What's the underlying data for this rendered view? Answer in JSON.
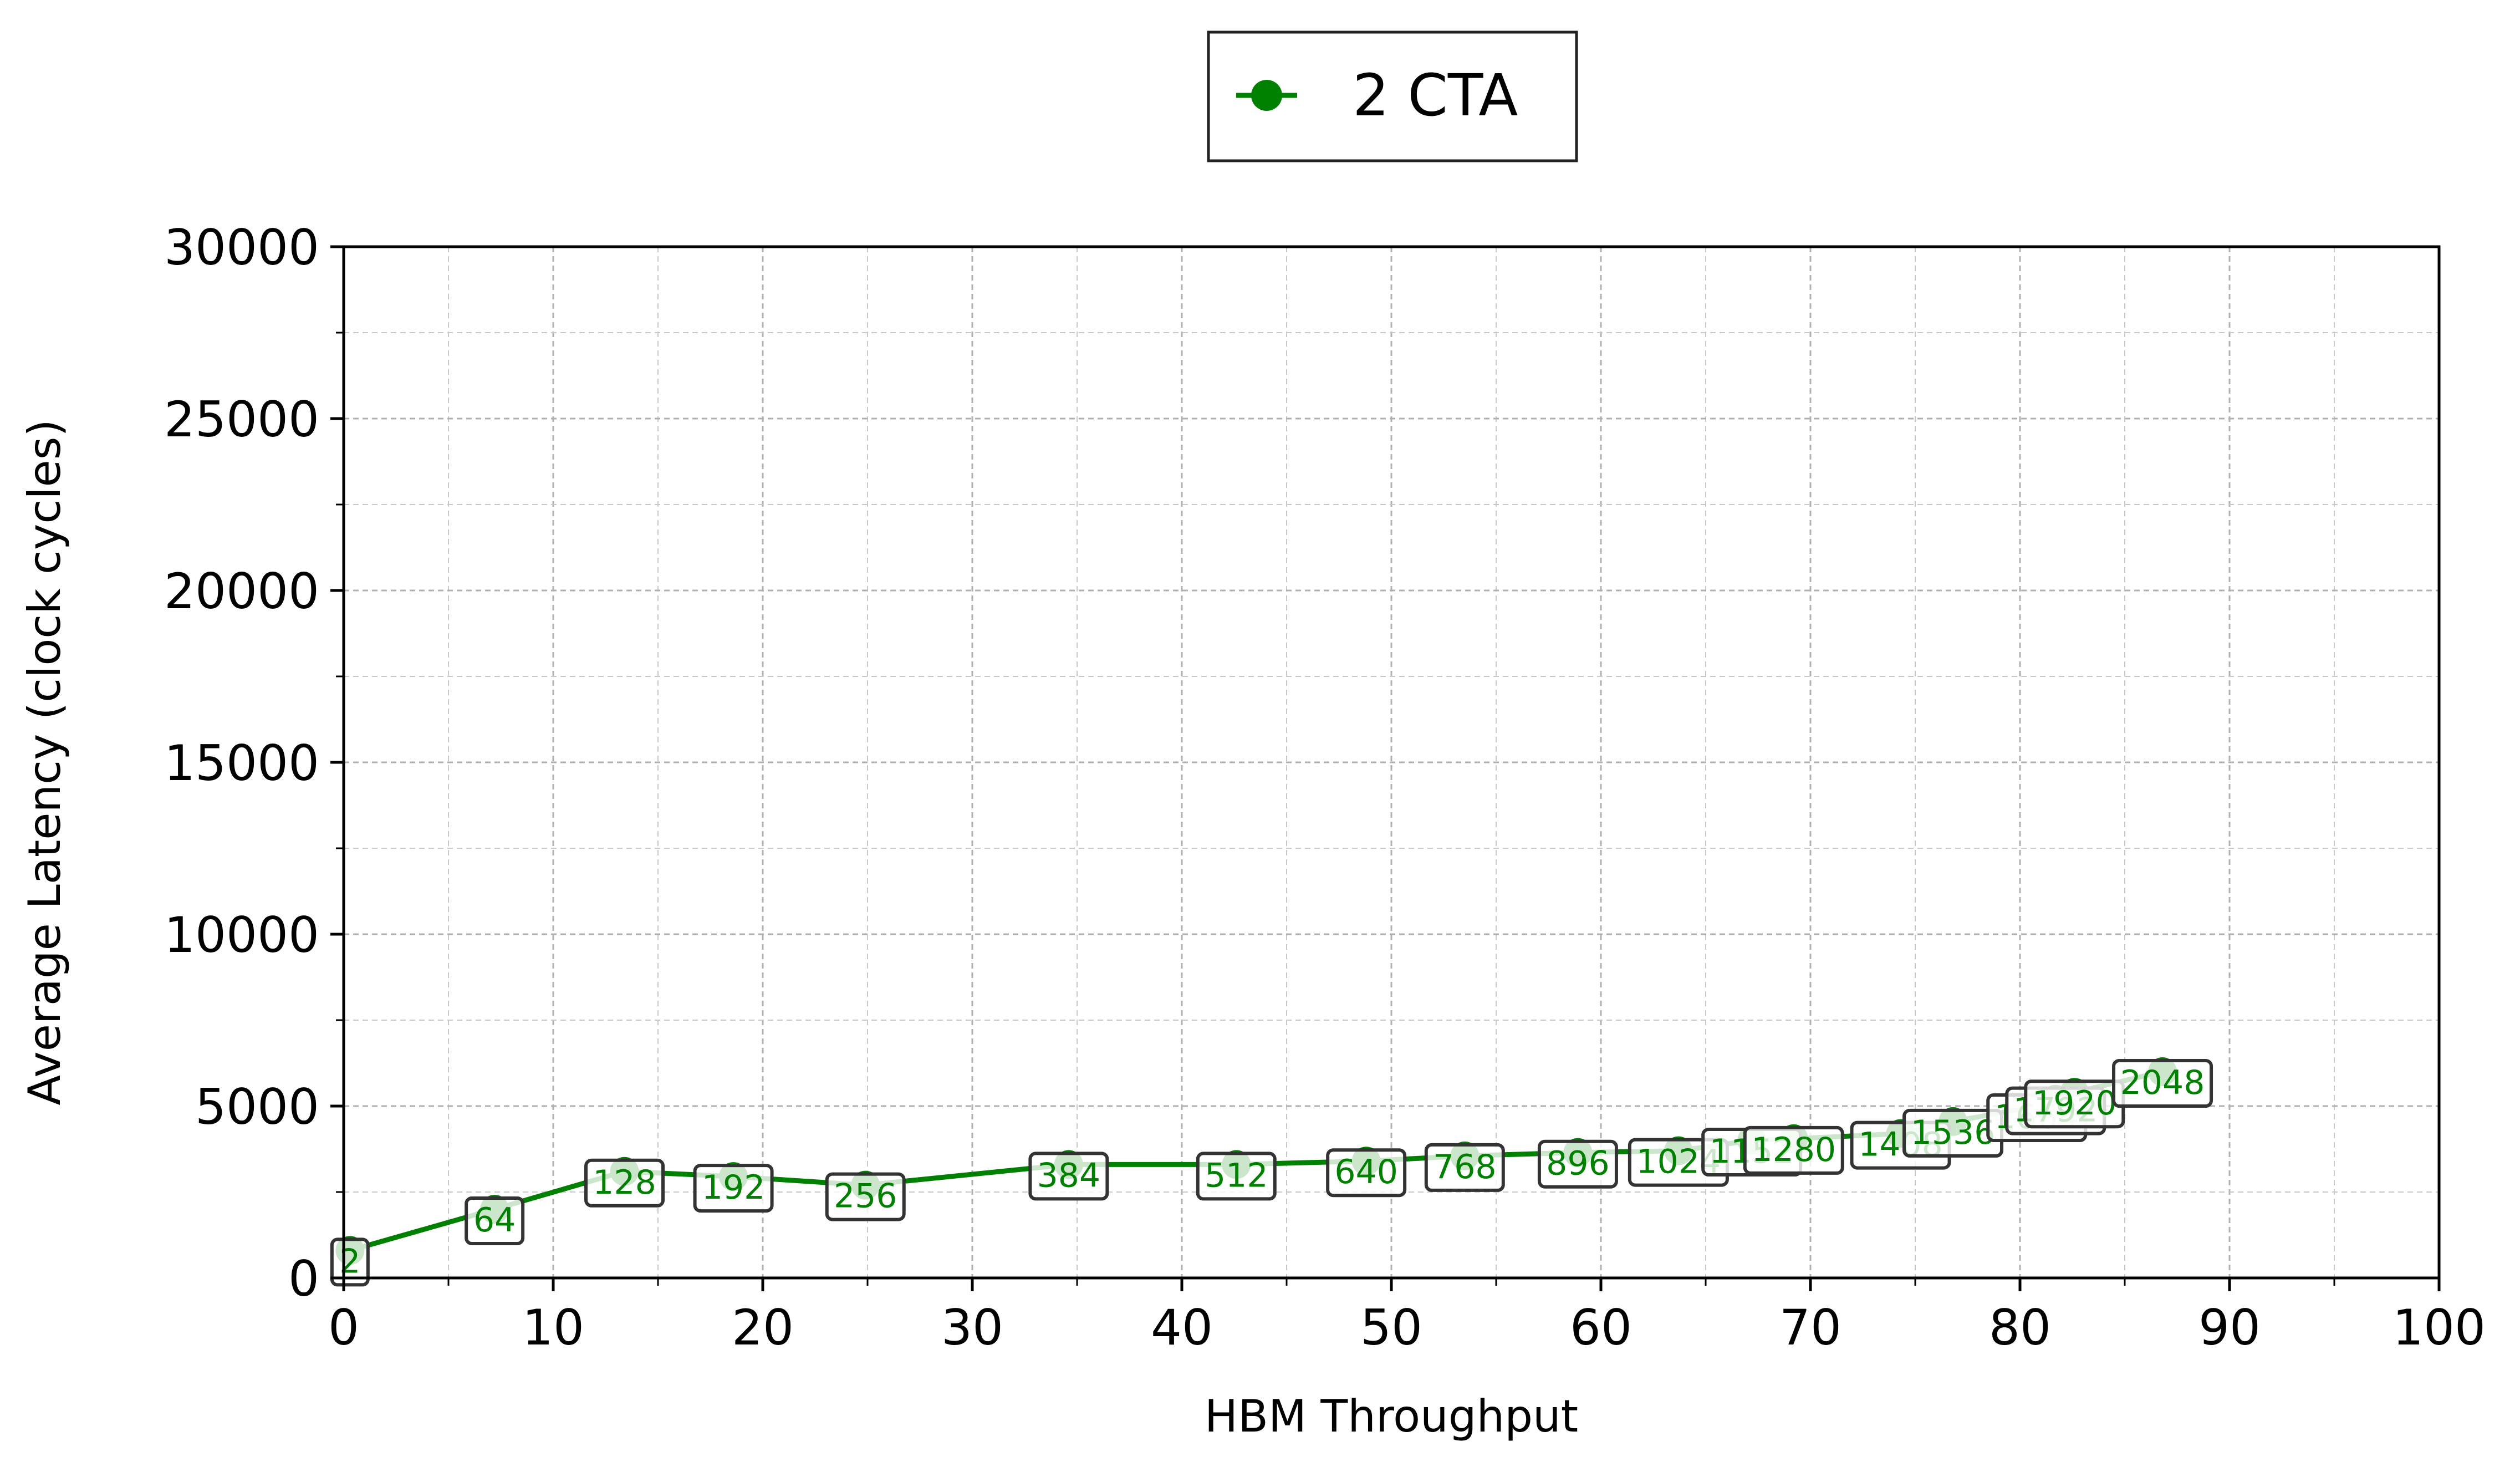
{
  "chart_data": {
    "type": "line",
    "title": "",
    "xlabel": "HBM Throughput",
    "ylabel": "Average Latency (clock cycles)",
    "xlim": [
      0,
      100
    ],
    "ylim": [
      0,
      30000
    ],
    "x_ticks": [
      0,
      10,
      20,
      30,
      40,
      50,
      60,
      70,
      80,
      90,
      100
    ],
    "y_ticks": [
      0,
      5000,
      10000,
      15000,
      20000,
      25000,
      30000
    ],
    "grid": true,
    "legend_position": "top-center",
    "series": [
      {
        "name": "2 CTA",
        "color": "#008000",
        "marker": "circle",
        "x": [
          0.3,
          7.2,
          13.4,
          18.6,
          24.9,
          34.6,
          42.6,
          48.8,
          53.5,
          58.9,
          63.7,
          67.2,
          69.2,
          74.3,
          76.8,
          80.8,
          81.7,
          82.6,
          86.8
        ],
        "y": [
          800,
          2000,
          3100,
          2950,
          2700,
          3300,
          3300,
          3400,
          3550,
          3650,
          3700,
          4000,
          4050,
          4200,
          4550,
          5000,
          5200,
          5400,
          6000
        ],
        "labels": [
          "2",
          "64",
          "128",
          "192",
          "256",
          "384",
          "512",
          "640",
          "768",
          "896",
          "1024",
          "1152",
          "1280",
          "1408",
          "1536",
          "1664",
          "1792",
          "1920",
          "2048"
        ]
      }
    ]
  }
}
